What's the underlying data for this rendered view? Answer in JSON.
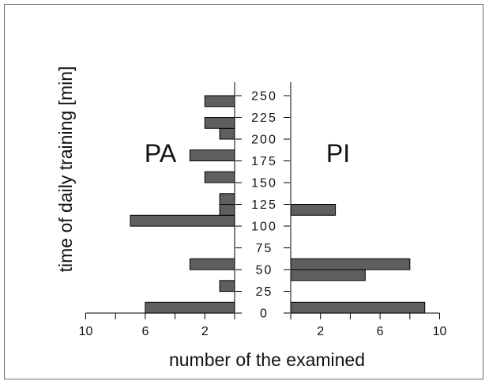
{
  "chart_data": {
    "type": "bar",
    "orientation": "horizontal",
    "layout": "back-to-back population pyramid",
    "xlabel": "number of the examined",
    "ylabel": "time of daily training [min]",
    "y_ticks": [
      0,
      25,
      50,
      75,
      100,
      125,
      150,
      175,
      200,
      225,
      250
    ],
    "left_x_ticks": [
      10,
      6,
      2
    ],
    "right_x_ticks": [
      2,
      6,
      10
    ],
    "xlim": [
      0,
      10
    ],
    "ylim": [
      0,
      260
    ],
    "bin_width": 12.5,
    "bar_color": "#5f5f5f",
    "series": [
      {
        "name": "PA",
        "side": "left",
        "bins": [
          {
            "from": 0,
            "to": 12.5,
            "value": 6
          },
          {
            "from": 25,
            "to": 37.5,
            "value": 1
          },
          {
            "from": 50,
            "to": 62.5,
            "value": 3
          },
          {
            "from": 100,
            "to": 112.5,
            "value": 7
          },
          {
            "from": 112.5,
            "to": 125,
            "value": 1
          },
          {
            "from": 125,
            "to": 137.5,
            "value": 1
          },
          {
            "from": 150,
            "to": 162.5,
            "value": 2
          },
          {
            "from": 175,
            "to": 187.5,
            "value": 3
          },
          {
            "from": 200,
            "to": 212.5,
            "value": 1
          },
          {
            "from": 212.5,
            "to": 225,
            "value": 2
          },
          {
            "from": 237.5,
            "to": 250,
            "value": 2
          }
        ]
      },
      {
        "name": "PI",
        "side": "right",
        "bins": [
          {
            "from": 0,
            "to": 12.5,
            "value": 9
          },
          {
            "from": 37.5,
            "to": 50,
            "value": 5
          },
          {
            "from": 50,
            "to": 62.5,
            "value": 8
          },
          {
            "from": 112.5,
            "to": 125,
            "value": 3
          }
        ]
      }
    ]
  }
}
